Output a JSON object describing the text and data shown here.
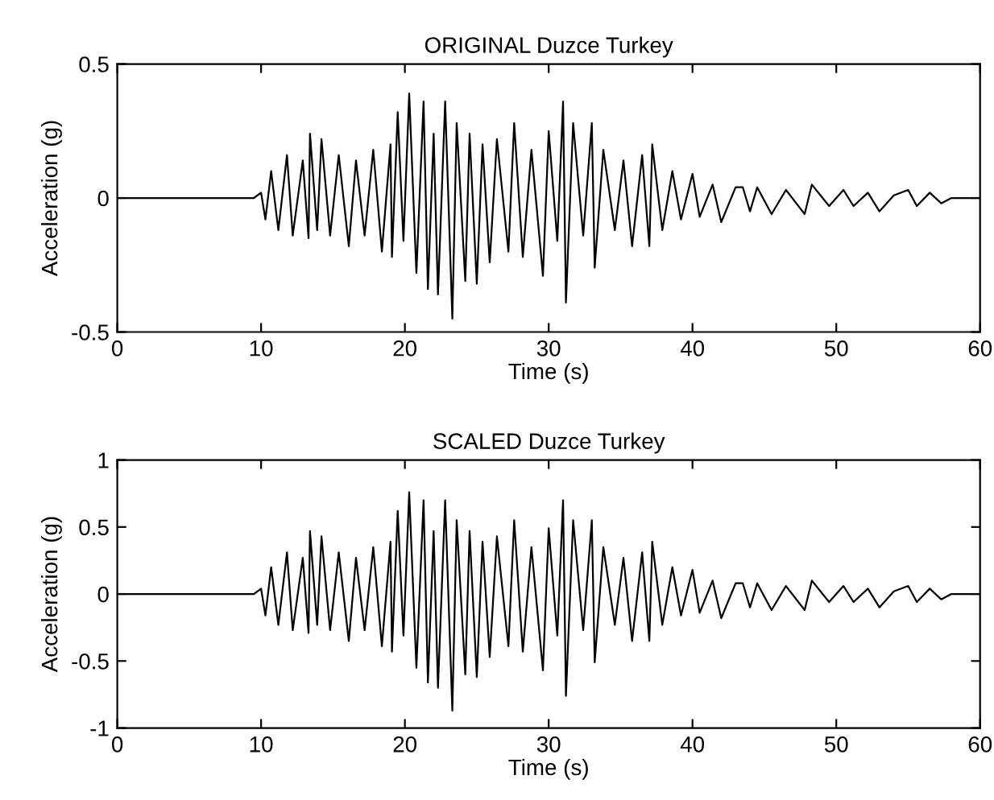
{
  "chart_data": [
    {
      "type": "line",
      "title": "ORIGINAL Duzce Turkey",
      "xlabel": "Time (s)",
      "ylabel": "Acceleration (g)",
      "xlim": [
        0,
        60
      ],
      "xticks": [
        0,
        10,
        20,
        30,
        40,
        50,
        60
      ],
      "ylim": [
        -0.5,
        0.5
      ],
      "yticks": [
        -0.5,
        0,
        0.5
      ],
      "grid": false,
      "legend": false,
      "series": [
        {
          "color": "#000000",
          "x": [
            0,
            9.5,
            10,
            10.3,
            10.7,
            11.2,
            11.8,
            12.2,
            12.9,
            13.3,
            13.4,
            13.9,
            14.2,
            14.8,
            15.4,
            16.1,
            16.6,
            17.2,
            17.8,
            18.4,
            19.0,
            19.1,
            19.5,
            19.9,
            20.3,
            20.8,
            21.3,
            21.6,
            22.0,
            22.3,
            22.8,
            23.3,
            23.6,
            24.2,
            24.5,
            25.0,
            25.4,
            25.9,
            26.4,
            27.2,
            27.6,
            28.2,
            28.8,
            29.6,
            30.0,
            30.6,
            31.0,
            31.2,
            31.7,
            32.4,
            33.0,
            33.2,
            33.8,
            34.6,
            35.2,
            35.8,
            36.5,
            37.0,
            37.2,
            37.9,
            38.6,
            39.2,
            40.0,
            40.5,
            41.4,
            42.0,
            43.0,
            43.5,
            44.0,
            44.5,
            45.5,
            46.5,
            47.8,
            48.3,
            49.5,
            50.5,
            51.2,
            52.2,
            53.0,
            54.0,
            55.0,
            55.6,
            56.5,
            57.3,
            58.0,
            60
          ],
          "values": [
            0,
            0,
            0.02,
            -0.08,
            0.1,
            -0.12,
            0.16,
            -0.14,
            0.14,
            -0.15,
            0.24,
            -0.12,
            0.22,
            -0.14,
            0.16,
            -0.18,
            0.14,
            -0.14,
            0.18,
            -0.2,
            0.2,
            -0.22,
            0.32,
            -0.16,
            0.39,
            -0.28,
            0.36,
            -0.34,
            0.24,
            -0.36,
            0.36,
            -0.45,
            0.28,
            -0.31,
            0.24,
            -0.32,
            0.2,
            -0.24,
            0.22,
            -0.2,
            0.28,
            -0.22,
            0.18,
            -0.29,
            0.25,
            -0.16,
            0.36,
            -0.39,
            0.28,
            -0.14,
            0.28,
            -0.26,
            0.18,
            -0.12,
            0.14,
            -0.18,
            0.16,
            -0.18,
            0.2,
            -0.12,
            0.1,
            -0.08,
            0.09,
            -0.07,
            0.05,
            -0.09,
            0.04,
            0.04,
            -0.05,
            0.04,
            -0.06,
            0.03,
            -0.06,
            0.05,
            -0.03,
            0.03,
            -0.03,
            0.02,
            -0.05,
            0.01,
            0.03,
            -0.03,
            0.02,
            -0.02,
            0,
            0
          ]
        }
      ]
    },
    {
      "type": "line",
      "title": "SCALED Duzce Turkey",
      "xlabel": "Time (s)",
      "ylabel": "Acceleration (g)",
      "xlim": [
        0,
        60
      ],
      "xticks": [
        0,
        10,
        20,
        30,
        40,
        50,
        60
      ],
      "ylim": [
        -1,
        1
      ],
      "yticks": [
        -1,
        -0.5,
        0,
        0.5,
        1
      ],
      "grid": false,
      "legend": false,
      "series": [
        {
          "color": "#000000",
          "x": [
            0,
            9.5,
            10,
            10.3,
            10.7,
            11.2,
            11.8,
            12.2,
            12.9,
            13.3,
            13.4,
            13.9,
            14.2,
            14.8,
            15.4,
            16.1,
            16.6,
            17.2,
            17.8,
            18.4,
            19.0,
            19.1,
            19.5,
            19.9,
            20.3,
            20.8,
            21.3,
            21.6,
            22.0,
            22.3,
            22.8,
            23.3,
            23.6,
            24.2,
            24.5,
            25.0,
            25.4,
            25.9,
            26.4,
            27.2,
            27.6,
            28.2,
            28.8,
            29.6,
            30.0,
            30.6,
            31.0,
            31.2,
            31.7,
            32.4,
            33.0,
            33.2,
            33.8,
            34.6,
            35.2,
            35.8,
            36.5,
            37.0,
            37.2,
            37.9,
            38.6,
            39.2,
            40.0,
            40.5,
            41.4,
            42.0,
            43.0,
            43.5,
            44.0,
            44.5,
            45.5,
            46.5,
            47.8,
            48.3,
            49.5,
            50.5,
            51.2,
            52.2,
            53.0,
            54.0,
            55.0,
            55.6,
            56.5,
            57.3,
            58.0,
            60
          ],
          "values": [
            0,
            0,
            0.04,
            -0.16,
            0.2,
            -0.23,
            0.31,
            -0.27,
            0.27,
            -0.29,
            0.47,
            -0.23,
            0.43,
            -0.27,
            0.31,
            -0.35,
            0.27,
            -0.27,
            0.35,
            -0.39,
            0.39,
            -0.43,
            0.62,
            -0.31,
            0.76,
            -0.55,
            0.7,
            -0.66,
            0.47,
            -0.7,
            0.7,
            -0.87,
            0.55,
            -0.6,
            0.47,
            -0.62,
            0.39,
            -0.47,
            0.43,
            -0.39,
            0.55,
            -0.43,
            0.35,
            -0.57,
            0.49,
            -0.31,
            0.7,
            -0.76,
            0.55,
            -0.27,
            0.55,
            -0.51,
            0.35,
            -0.23,
            0.27,
            -0.35,
            0.31,
            -0.35,
            0.39,
            -0.23,
            0.2,
            -0.16,
            0.18,
            -0.14,
            0.1,
            -0.18,
            0.08,
            0.08,
            -0.1,
            0.08,
            -0.12,
            0.06,
            -0.12,
            0.1,
            -0.06,
            0.06,
            -0.06,
            0.04,
            -0.1,
            0.02,
            0.06,
            -0.06,
            0.04,
            -0.04,
            0,
            0
          ]
        }
      ]
    }
  ]
}
